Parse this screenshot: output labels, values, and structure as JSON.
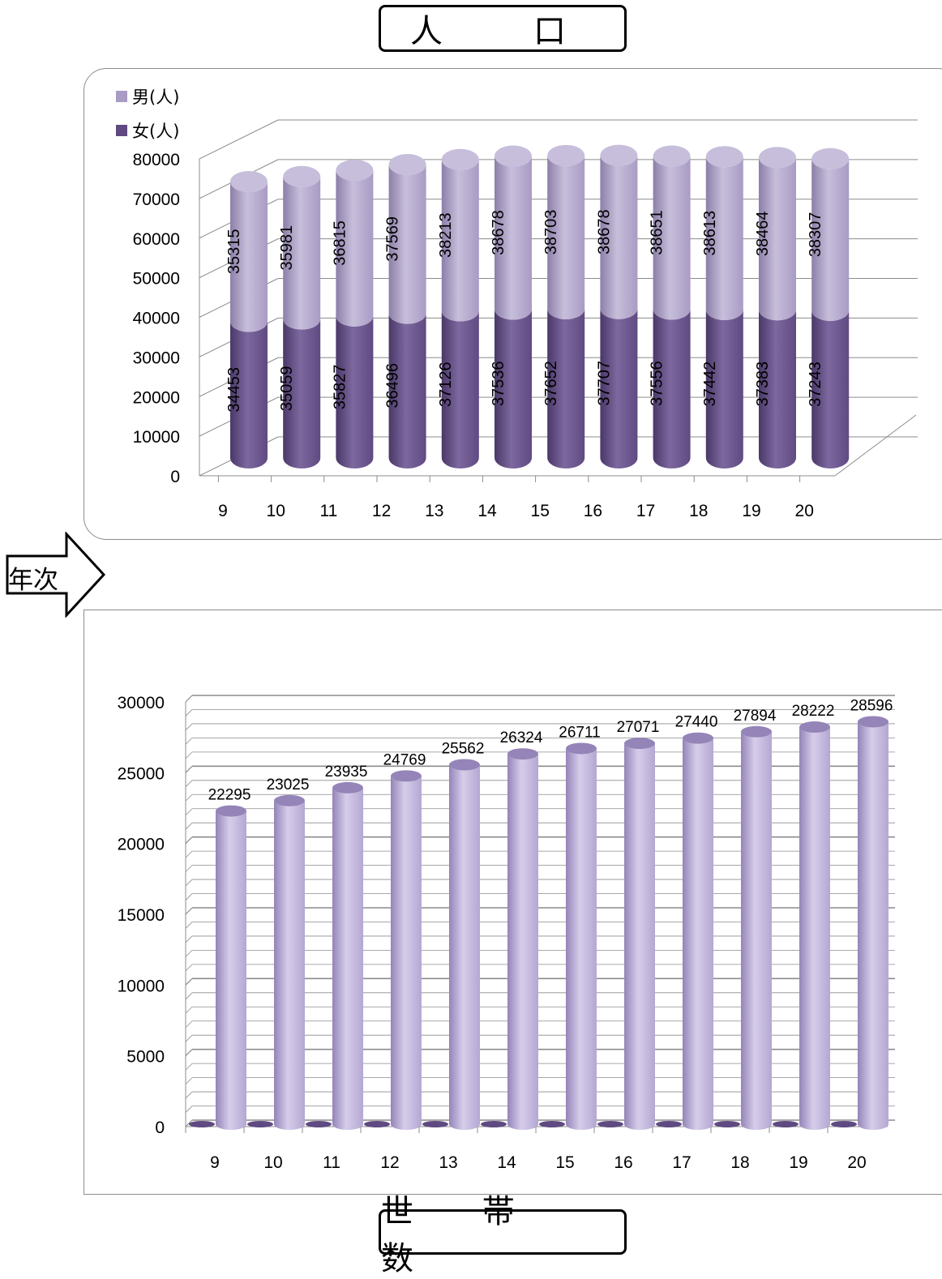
{
  "titles": {
    "top": "人　口",
    "bottom": "世 帯 数"
  },
  "arrow_label": "年次",
  "colors": {
    "male": "#a99bc4",
    "male_dark": "#8c7fa8",
    "male_light": "#c7bedb",
    "female": "#5f4a82",
    "female_dark": "#4a3868",
    "female_light": "#7d689f",
    "households": "#b4a7d2",
    "households_dark": "#9484b8",
    "households_light": "#d6cdea",
    "grid": "#8c8c8c"
  },
  "chart_data": [
    {
      "type": "bar",
      "stacked": true,
      "style": "3d-cylinder",
      "title": "人　口",
      "categories": [
        "9",
        "10",
        "11",
        "12",
        "13",
        "14",
        "15",
        "16",
        "17",
        "18",
        "19",
        "20"
      ],
      "series": [
        {
          "name": "男(人)",
          "values": [
            35315,
            35981,
            36815,
            37569,
            38213,
            38678,
            38703,
            38678,
            38651,
            38613,
            38464,
            38307
          ]
        },
        {
          "name": "女(人)",
          "values": [
            34453,
            35059,
            35827,
            36496,
            37126,
            37536,
            37652,
            37707,
            37556,
            37442,
            37383,
            37243
          ]
        }
      ],
      "ylim": [
        0,
        80000
      ],
      "yticks": [
        0,
        10000,
        20000,
        30000,
        40000,
        50000,
        60000,
        70000,
        80000
      ],
      "legend": "top-left",
      "grid": true
    },
    {
      "type": "bar",
      "style": "3d-cylinder",
      "title": "世 帯 数",
      "categories": [
        "9",
        "10",
        "11",
        "12",
        "13",
        "14",
        "15",
        "16",
        "17",
        "18",
        "19",
        "20"
      ],
      "series": [
        {
          "values": [
            22295,
            23025,
            23935,
            24769,
            25562,
            26324,
            26711,
            27071,
            27440,
            27894,
            28222,
            28596
          ]
        }
      ],
      "ylim": [
        0,
        30000
      ],
      "yticks": [
        0,
        5000,
        10000,
        15000,
        20000,
        25000,
        30000
      ],
      "grid": true
    }
  ]
}
